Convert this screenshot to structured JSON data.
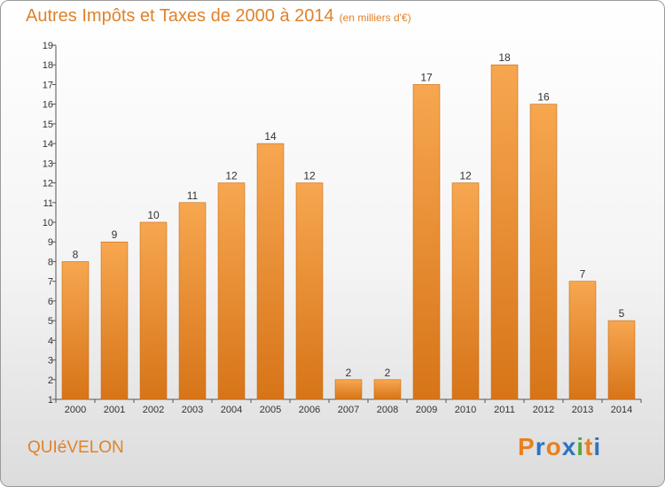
{
  "header": {
    "title": "Autres Impôts et Taxes de 2000 à 2014",
    "subtitle": "(en milliers d'€)"
  },
  "footer": {
    "commune": "QUIéVELON",
    "logo_letters": [
      "P",
      "r",
      "o",
      "x",
      "i",
      "t",
      "i"
    ]
  },
  "colors": {
    "accent": "#e0822a",
    "bar_light": "#f7a750",
    "bar_dark": "#d77418",
    "logo": [
      "#e8801e",
      "#2d73c4",
      "#e8801e",
      "#2d73c4",
      "#5aa53a",
      "#e8801e",
      "#2d73c4"
    ]
  },
  "chart_data": {
    "type": "bar",
    "title": "Autres Impôts et Taxes de 2000 à 2014",
    "subtitle": "(en milliers d'€)",
    "categories": [
      "2000",
      "2001",
      "2002",
      "2003",
      "2004",
      "2005",
      "2006",
      "2007",
      "2008",
      "2009",
      "2010",
      "2011",
      "2012",
      "2013",
      "2014"
    ],
    "values": [
      8,
      9,
      10,
      11,
      12,
      14,
      12,
      2,
      2,
      17,
      12,
      18,
      16,
      7,
      5
    ],
    "data_labels": [
      "8",
      "9",
      "10",
      "11",
      "12",
      "14",
      "12",
      "2",
      "2",
      "17",
      "12",
      "18",
      "16",
      "7",
      "5"
    ],
    "y_ticks": [
      "1",
      "2",
      "3",
      "4",
      "5",
      "6",
      "7",
      "8",
      "9",
      "10",
      "11",
      "12",
      "13",
      "14",
      "15",
      "16",
      "17",
      "18",
      "19"
    ],
    "ylim": [
      1,
      19
    ],
    "grid": false,
    "legend": "none"
  }
}
